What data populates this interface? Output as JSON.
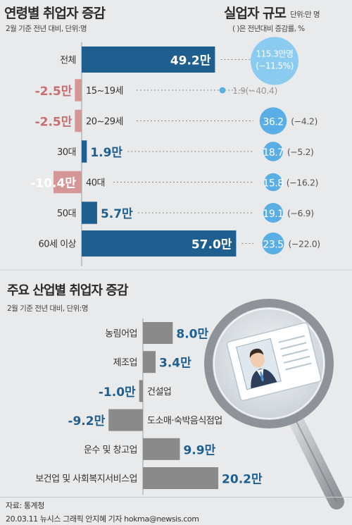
{
  "chart_data": [
    {
      "type": "bar",
      "title": "연령별 취업자 증감",
      "subtitle": "2월 기준 전년 대비, 단위:명",
      "categories": [
        "전체",
        "15~19세",
        "20~29세",
        "30대",
        "40대",
        "50대",
        "60세 이상"
      ],
      "values": [
        49.2,
        -2.5,
        -2.5,
        1.9,
        -10.4,
        5.7,
        57.0
      ],
      "value_labels": [
        "49.2만",
        "-2.5만",
        "-2.5만",
        "1.9만",
        "-10.4만",
        "5.7만",
        "57.0만"
      ],
      "colors": {
        "positive": "#1f5f90",
        "negative": "#d49696",
        "pos_text": "#1f5f90",
        "neg_text": "#c47070"
      }
    },
    {
      "type": "scatter",
      "title": "실업자 규모",
      "unit_note": "단위:만 명",
      "note": "( )은 전년대비 증감률, %",
      "categories": [
        "전체",
        "15~19세",
        "20~29세",
        "30대",
        "40대",
        "50대",
        "60세 이상"
      ],
      "values": [
        115.3,
        1.9,
        36.2,
        18.7,
        15.8,
        19.1,
        23.5
      ],
      "change_pct": [
        -11.5,
        -40.4,
        -4.2,
        -5.2,
        -16.2,
        -6.9,
        -22.0
      ],
      "value_labels": [
        "115.3만명",
        "1.9",
        "36.2",
        "18.7",
        "15.8",
        "19.1",
        "23.5"
      ],
      "change_labels": [
        "(−11.5%)",
        "(−40.4)",
        "(−4.2)",
        "(−5.2)",
        "(−16.2)",
        "(−6.9)",
        "(−22.0)"
      ],
      "colors": {
        "bubble": "#5aaee6",
        "bubble_light": "#8ccbf0",
        "label": "#555555"
      }
    },
    {
      "type": "bar",
      "title": "주요 산업별 취업자 증감",
      "subtitle": "2월 기준 전년 대비, 단위:명",
      "categories": [
        "농림어업",
        "제조업",
        "건설업",
        "도소매·숙박음식점업",
        "운수 및 창고업",
        "보건업 및 사회복지서비스업"
      ],
      "values": [
        8.0,
        3.4,
        -1.0,
        -9.2,
        9.9,
        20.2
      ],
      "value_labels": [
        "8.0만",
        "3.4만",
        "-1.0만",
        "-9.2만",
        "9.9만",
        "20.2만"
      ],
      "colors": {
        "bar": "#8a8a8a",
        "label": "#1f5f90"
      }
    }
  ],
  "footer": {
    "source": "자료: 통계청",
    "credit": "20.03.11 뉴시스 그래픽 안지혜 기자 hokma@newsis.com"
  }
}
